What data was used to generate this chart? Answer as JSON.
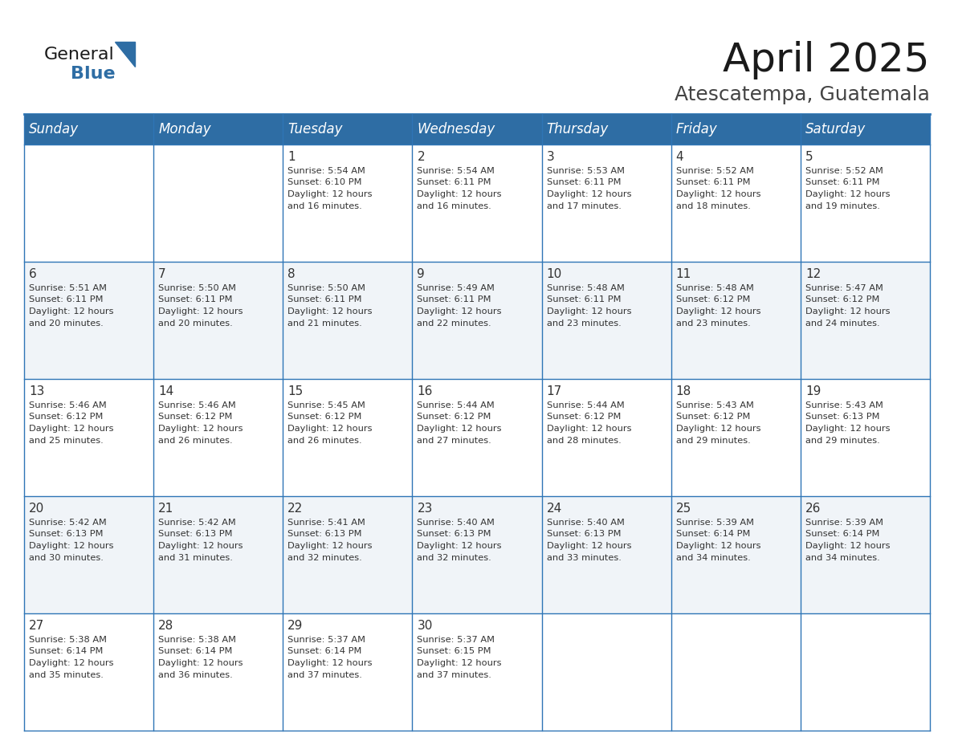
{
  "title": "April 2025",
  "subtitle": "Atescatempa, Guatemala",
  "header_bg_color": "#2E6DA4",
  "header_text_color": "#FFFFFF",
  "cell_bg_color": "#FFFFFF",
  "cell_bg_alt": "#F2F2F2",
  "cell_text_color": "#333333",
  "border_color": "#2E75B6",
  "logo_text_color": "#1a1a1a",
  "logo_blue_color": "#2E6DA4",
  "days_of_week": [
    "Sunday",
    "Monday",
    "Tuesday",
    "Wednesday",
    "Thursday",
    "Friday",
    "Saturday"
  ],
  "title_fontsize": 36,
  "subtitle_fontsize": 18,
  "header_fontsize": 12,
  "cell_fontsize": 8.2,
  "day_num_fontsize": 11,
  "calendar": [
    [
      {
        "day": "",
        "sunrise": "",
        "sunset": "",
        "daylight_mins": ""
      },
      {
        "day": "",
        "sunrise": "",
        "sunset": "",
        "daylight_mins": ""
      },
      {
        "day": "1",
        "sunrise": "5:54 AM",
        "sunset": "6:10 PM",
        "daylight_mins": "16 minutes."
      },
      {
        "day": "2",
        "sunrise": "5:54 AM",
        "sunset": "6:11 PM",
        "daylight_mins": "16 minutes."
      },
      {
        "day": "3",
        "sunrise": "5:53 AM",
        "sunset": "6:11 PM",
        "daylight_mins": "17 minutes."
      },
      {
        "day": "4",
        "sunrise": "5:52 AM",
        "sunset": "6:11 PM",
        "daylight_mins": "18 minutes."
      },
      {
        "day": "5",
        "sunrise": "5:52 AM",
        "sunset": "6:11 PM",
        "daylight_mins": "19 minutes."
      }
    ],
    [
      {
        "day": "6",
        "sunrise": "5:51 AM",
        "sunset": "6:11 PM",
        "daylight_mins": "20 minutes."
      },
      {
        "day": "7",
        "sunrise": "5:50 AM",
        "sunset": "6:11 PM",
        "daylight_mins": "20 minutes."
      },
      {
        "day": "8",
        "sunrise": "5:50 AM",
        "sunset": "6:11 PM",
        "daylight_mins": "21 minutes."
      },
      {
        "day": "9",
        "sunrise": "5:49 AM",
        "sunset": "6:11 PM",
        "daylight_mins": "22 minutes."
      },
      {
        "day": "10",
        "sunrise": "5:48 AM",
        "sunset": "6:11 PM",
        "daylight_mins": "23 minutes."
      },
      {
        "day": "11",
        "sunrise": "5:48 AM",
        "sunset": "6:12 PM",
        "daylight_mins": "23 minutes."
      },
      {
        "day": "12",
        "sunrise": "5:47 AM",
        "sunset": "6:12 PM",
        "daylight_mins": "24 minutes."
      }
    ],
    [
      {
        "day": "13",
        "sunrise": "5:46 AM",
        "sunset": "6:12 PM",
        "daylight_mins": "25 minutes."
      },
      {
        "day": "14",
        "sunrise": "5:46 AM",
        "sunset": "6:12 PM",
        "daylight_mins": "26 minutes."
      },
      {
        "day": "15",
        "sunrise": "5:45 AM",
        "sunset": "6:12 PM",
        "daylight_mins": "26 minutes."
      },
      {
        "day": "16",
        "sunrise": "5:44 AM",
        "sunset": "6:12 PM",
        "daylight_mins": "27 minutes."
      },
      {
        "day": "17",
        "sunrise": "5:44 AM",
        "sunset": "6:12 PM",
        "daylight_mins": "28 minutes."
      },
      {
        "day": "18",
        "sunrise": "5:43 AM",
        "sunset": "6:12 PM",
        "daylight_mins": "29 minutes."
      },
      {
        "day": "19",
        "sunrise": "5:43 AM",
        "sunset": "6:13 PM",
        "daylight_mins": "29 minutes."
      }
    ],
    [
      {
        "day": "20",
        "sunrise": "5:42 AM",
        "sunset": "6:13 PM",
        "daylight_mins": "30 minutes."
      },
      {
        "day": "21",
        "sunrise": "5:42 AM",
        "sunset": "6:13 PM",
        "daylight_mins": "31 minutes."
      },
      {
        "day": "22",
        "sunrise": "5:41 AM",
        "sunset": "6:13 PM",
        "daylight_mins": "32 minutes."
      },
      {
        "day": "23",
        "sunrise": "5:40 AM",
        "sunset": "6:13 PM",
        "daylight_mins": "32 minutes."
      },
      {
        "day": "24",
        "sunrise": "5:40 AM",
        "sunset": "6:13 PM",
        "daylight_mins": "33 minutes."
      },
      {
        "day": "25",
        "sunrise": "5:39 AM",
        "sunset": "6:14 PM",
        "daylight_mins": "34 minutes."
      },
      {
        "day": "26",
        "sunrise": "5:39 AM",
        "sunset": "6:14 PM",
        "daylight_mins": "34 minutes."
      }
    ],
    [
      {
        "day": "27",
        "sunrise": "5:38 AM",
        "sunset": "6:14 PM",
        "daylight_mins": "35 minutes."
      },
      {
        "day": "28",
        "sunrise": "5:38 AM",
        "sunset": "6:14 PM",
        "daylight_mins": "36 minutes."
      },
      {
        "day": "29",
        "sunrise": "5:37 AM",
        "sunset": "6:14 PM",
        "daylight_mins": "37 minutes."
      },
      {
        "day": "30",
        "sunrise": "5:37 AM",
        "sunset": "6:15 PM",
        "daylight_mins": "37 minutes."
      },
      {
        "day": "",
        "sunrise": "",
        "sunset": "",
        "daylight_mins": ""
      },
      {
        "day": "",
        "sunrise": "",
        "sunset": "",
        "daylight_mins": ""
      },
      {
        "day": "",
        "sunrise": "",
        "sunset": "",
        "daylight_mins": ""
      }
    ]
  ]
}
